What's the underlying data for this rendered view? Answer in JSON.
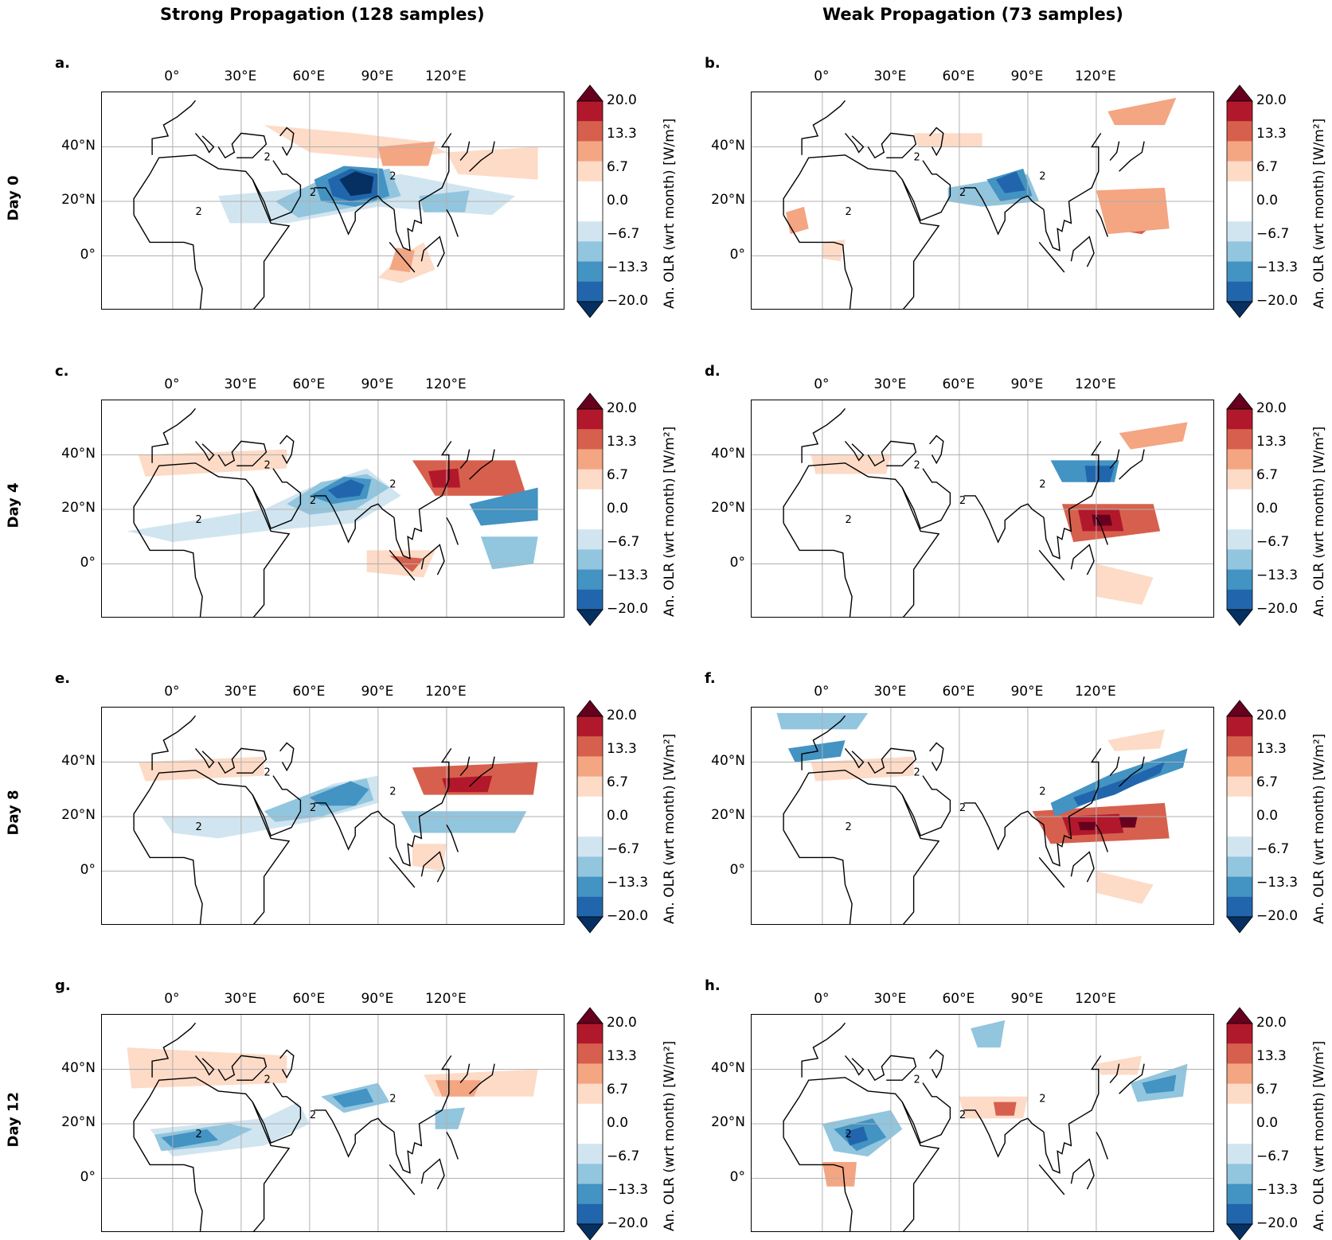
{
  "titles": {
    "strong": "Strong Propagation (128 samples)",
    "weak": "Weak Propagation (73 samples)"
  },
  "rows": [
    "Day 0",
    "Day 4",
    "Day 8",
    "Day 12"
  ],
  "panels": [
    {
      "letter": "a.",
      "id": "a"
    },
    {
      "letter": "b.",
      "id": "b"
    },
    {
      "letter": "c.",
      "id": "c"
    },
    {
      "letter": "d.",
      "id": "d"
    },
    {
      "letter": "e.",
      "id": "e"
    },
    {
      "letter": "f.",
      "id": "f"
    },
    {
      "letter": "g.",
      "id": "g"
    },
    {
      "letter": "h.",
      "id": "h"
    }
  ],
  "lon_ticks": [
    "0°",
    "30°E",
    "60°E",
    "90°E",
    "120°E"
  ],
  "lat_ticks": [
    "40°N",
    "20°N",
    "0°"
  ],
  "colorbar": {
    "ticks": [
      "20.0",
      "13.3",
      "6.7",
      "0.0",
      "−6.7",
      "−13.3",
      "−20.0"
    ],
    "label": "An. OLR (wrt month) [W/m²]",
    "colors": [
      "#67001f",
      "#b2182b",
      "#d6604d",
      "#f4a582",
      "#fddbc7",
      "#ffffff",
      "#ffffff",
      "#d1e5f0",
      "#92c5de",
      "#4393c3",
      "#2166ac",
      "#053061"
    ],
    "extend_top": "#67001f",
    "extend_bottom": "#053061",
    "segments": [
      "#b2182b",
      "#d6604d",
      "#f4a582",
      "#fddbc7",
      "#ffffff",
      "#ffffff",
      "#d1e5f0",
      "#92c5de",
      "#4393c3",
      "#2166ac"
    ]
  },
  "contour_label": "2"
}
